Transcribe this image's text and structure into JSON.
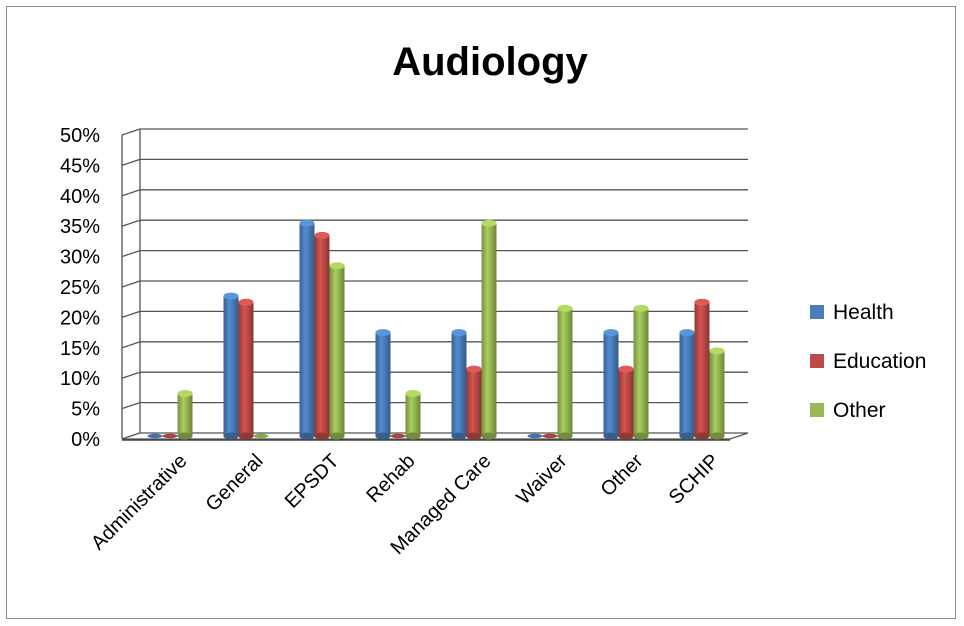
{
  "chart_data": {
    "type": "bar",
    "title": "Audiology",
    "xlabel": "",
    "ylabel": "",
    "ylim": [
      0,
      50
    ],
    "y_ticks": [
      "0%",
      "5%",
      "10%",
      "15%",
      "20%",
      "25%",
      "30%",
      "35%",
      "40%",
      "45%",
      "50%"
    ],
    "grid": true,
    "legend_position": "right",
    "categories": [
      "Administrative",
      "General",
      "EPSDT",
      "Rehab",
      "Managed Care",
      "Waiver",
      "Other",
      "SCHIP"
    ],
    "series": [
      {
        "name": "Health",
        "color": "#4a7ebb",
        "values": [
          0,
          23,
          35,
          17,
          17,
          0,
          17,
          17
        ]
      },
      {
        "name": "Education",
        "color": "#be4b48",
        "values": [
          0,
          22,
          33,
          0,
          11,
          0,
          11,
          22
        ]
      },
      {
        "name": "Other",
        "color": "#98b954",
        "values": [
          7,
          0,
          28,
          7,
          35,
          21,
          21,
          14
        ]
      }
    ]
  }
}
